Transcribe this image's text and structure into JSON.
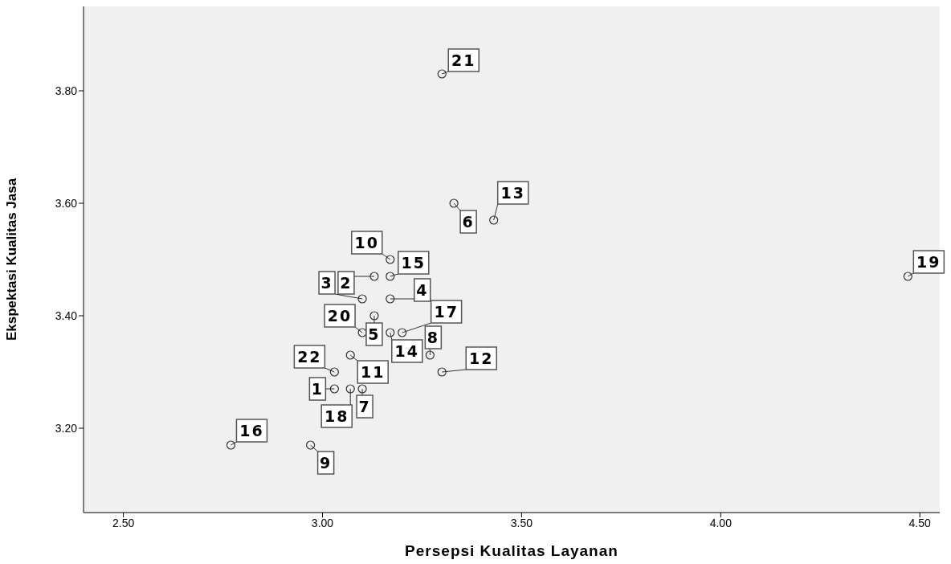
{
  "chart_data": {
    "type": "scatter",
    "xlabel": "Persepsi Kualitas Layanan",
    "ylabel": "Ekspektasi Kualitas Jasa",
    "marker": "circle",
    "color": "#333333",
    "x": [
      3.03,
      3.13,
      3.1,
      3.17,
      3.13,
      3.33,
      3.1,
      3.27,
      2.97,
      3.17,
      3.07,
      3.3,
      3.43,
      3.17,
      3.17,
      2.77,
      3.2,
      3.07,
      4.47,
      3.1,
      3.3,
      3.03
    ],
    "values": [
      3.27,
      3.47,
      3.43,
      3.43,
      3.4,
      3.6,
      3.27,
      3.33,
      3.17,
      3.5,
      3.33,
      3.3,
      3.57,
      3.37,
      3.47,
      3.17,
      3.37,
      3.27,
      3.47,
      3.37,
      3.83,
      3.3
    ],
    "xlim": [
      2.4,
      4.55
    ],
    "ylim": [
      3.05,
      3.95
    ],
    "xticks": [
      {
        "value": 2.5,
        "label": "2.50"
      },
      {
        "value": 3.0,
        "label": "3.00"
      },
      {
        "value": 3.5,
        "label": "3.50"
      },
      {
        "value": 4.0,
        "label": "4.00"
      },
      {
        "value": 4.5,
        "label": "4.50"
      }
    ],
    "yticks": [
      {
        "value": 3.2,
        "label": "3.20"
      },
      {
        "value": 3.4,
        "label": "3.40"
      },
      {
        "value": 3.6,
        "label": "3.60"
      },
      {
        "value": 3.8,
        "label": "3.80"
      }
    ],
    "annotations": [
      {
        "text": "1",
        "x": 3.03,
        "y": 3.27
      },
      {
        "text": "2",
        "x": 3.13,
        "y": 3.47
      },
      {
        "text": "3",
        "x": 3.1,
        "y": 3.43
      },
      {
        "text": "4",
        "x": 3.17,
        "y": 3.43
      },
      {
        "text": "5",
        "x": 3.13,
        "y": 3.4
      },
      {
        "text": "6",
        "x": 3.33,
        "y": 3.6
      },
      {
        "text": "7",
        "x": 3.1,
        "y": 3.27
      },
      {
        "text": "8",
        "x": 3.27,
        "y": 3.33
      },
      {
        "text": "9",
        "x": 2.97,
        "y": 3.17
      },
      {
        "text": "10",
        "x": 3.17,
        "y": 3.5
      },
      {
        "text": "11",
        "x": 3.07,
        "y": 3.33
      },
      {
        "text": "12",
        "x": 3.3,
        "y": 3.3
      },
      {
        "text": "13",
        "x": 3.43,
        "y": 3.57
      },
      {
        "text": "14",
        "x": 3.17,
        "y": 3.37
      },
      {
        "text": "15",
        "x": 3.17,
        "y": 3.47
      },
      {
        "text": "16",
        "x": 2.77,
        "y": 3.17
      },
      {
        "text": "17",
        "x": 3.2,
        "y": 3.37
      },
      {
        "text": "18",
        "x": 3.07,
        "y": 3.27
      },
      {
        "text": "19",
        "x": 4.47,
        "y": 3.47
      },
      {
        "text": "20",
        "x": 3.1,
        "y": 3.37
      },
      {
        "text": "21",
        "x": 3.3,
        "y": 3.83
      },
      {
        "text": "22",
        "x": 3.03,
        "y": 3.3
      }
    ]
  }
}
